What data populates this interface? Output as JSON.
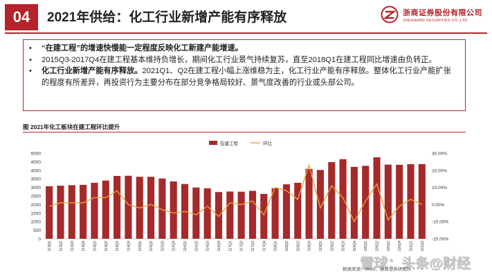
{
  "header": {
    "section_number": "04",
    "title": "2021年供给：化工行业新增产能有序释放",
    "logo_cn": "浙商证券股份有限公司",
    "logo_en": "ZHESHANG SECURITIES CO.,LTD",
    "brand_color": "#b5232b"
  },
  "bullets": {
    "b1": "“在建工程”的增速快慢能一定程度反映化工新建产能增速。",
    "b2": "2015Q3-2017Q4在建工程基本维持负增长，期间化工行业景气持续复苏，直至2018Q1在建工程同比增速由负转正。",
    "b3_bold": "化工行业新增产能有序释放。",
    "b3_rest": "2021Q1、Q2在建工程小幅上涨维稳为主，化工行业产能有序释放。整体化工行业产能扩张的程度有所差异，再投资行为主要分布在部分竞争格局较好、景气度改善的行业或头部公司。"
  },
  "chart_title": "图 2021年化工板块在建工程环比提升",
  "watermark": "雪球：头条@财经",
  "source": "数据来源：Wind，浙商证券研究所",
  "chart_data": {
    "type": "bar",
    "categories": [
      "2013Q1",
      "2013Q2",
      "2013Q3",
      "2013Q4",
      "2014Q1",
      "2014Q2",
      "2014Q3",
      "2014Q4",
      "2015Q1",
      "2015Q2",
      "2015Q3",
      "2015Q4",
      "2016Q1",
      "2016Q2",
      "2016Q3",
      "2016Q4",
      "2017Q1",
      "2017Q2",
      "2017Q3",
      "2017Q4",
      "2018Q1",
      "2018Q2",
      "2018Q3",
      "2018Q4",
      "2019Q1",
      "2019Q2",
      "2019Q3",
      "2019Q4",
      "2020Q1",
      "2020Q2",
      "2020Q3",
      "2020Q4",
      "2021Q1",
      "2021Q2"
    ],
    "series": [
      {
        "name": "在建工程",
        "type": "bar",
        "color": "#a52a2a",
        "axis": "left",
        "values": [
          3070,
          3100,
          3130,
          3150,
          3270,
          3400,
          3670,
          3680,
          3620,
          3620,
          3520,
          3350,
          3200,
          2990,
          2950,
          2730,
          2760,
          2750,
          2800,
          2620,
          2950,
          3180,
          3270,
          4080,
          4020,
          4480,
          4650,
          4200,
          4260,
          4760,
          4330,
          4320,
          4360,
          4360
        ]
      },
      {
        "name": "环比",
        "type": "line",
        "color": "#e8a33d",
        "axis": "right",
        "values": [
          -0.01,
          0.01,
          0.01,
          0.01,
          0.04,
          0.04,
          0.08,
          0.0,
          -0.02,
          0.0,
          -0.03,
          -0.05,
          -0.04,
          -0.06,
          -0.01,
          -0.07,
          0.01,
          0.0,
          0.02,
          -0.06,
          0.1,
          0.08,
          0.03,
          0.23,
          -0.02,
          0.11,
          0.04,
          -0.1,
          0.02,
          0.12,
          -0.09,
          -0.01,
          0.03,
          0.0
        ]
      }
    ],
    "y_left": {
      "min": 0,
      "max": 5000,
      "ticks": [
        0,
        500,
        1000,
        1500,
        2000,
        2500,
        3000,
        3500,
        4000,
        4500,
        5000
      ]
    },
    "y_right": {
      "min": -0.2,
      "max": 0.3,
      "ticks": [
        "-20.00%",
        "-10.00%",
        "0.00%",
        "10.00%",
        "20.00%",
        "30.00%"
      ]
    },
    "legend_position": "top-center",
    "grid": false
  }
}
